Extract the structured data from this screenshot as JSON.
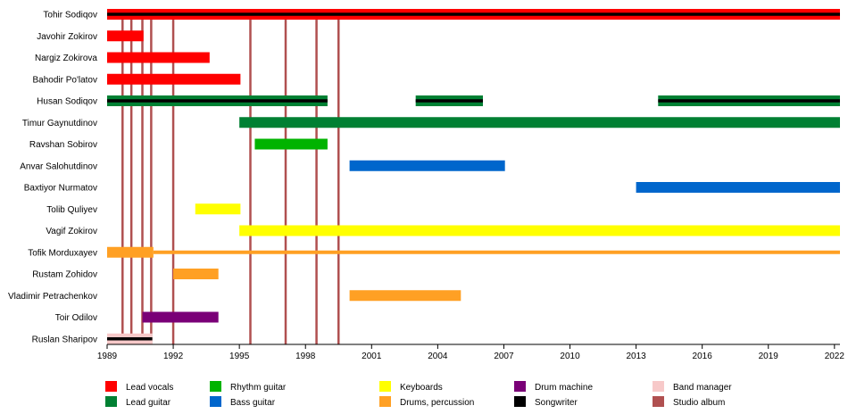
{
  "chart_data": {
    "type": "timeline",
    "title": "",
    "xlim": [
      1989,
      2022.25
    ],
    "ticks": [
      "1989",
      "1992",
      "1995",
      "1998",
      "2001",
      "2004",
      "2007",
      "2010",
      "2013",
      "2016",
      "2019",
      "2022"
    ],
    "tick_values": [
      1989,
      1992,
      1995,
      1998,
      2001,
      2004,
      2007,
      2010,
      2013,
      2016,
      2019,
      2022
    ],
    "roles": {
      "lead_vocals": {
        "label": "Lead vocals",
        "color": "#ff0000"
      },
      "lead_guitar": {
        "label": "Lead guitar",
        "color": "#008033"
      },
      "rhythm_guitar": {
        "label": "Rhythm guitar",
        "color": "#00b300"
      },
      "bass_guitar": {
        "label": "Bass guitar",
        "color": "#0066cc"
      },
      "keyboards": {
        "label": "Keyboards",
        "color": "#ffff00"
      },
      "drums": {
        "label": "Drums, percussion",
        "color": "#ffa024"
      },
      "drum_machine": {
        "label": "Drum machine",
        "color": "#7a0077"
      },
      "songwriter": {
        "label": "Songwriter",
        "color": "#000000"
      },
      "band_manager": {
        "label": "Band manager",
        "color": "#f7c9c9"
      },
      "studio_album": {
        "label": "Studio album",
        "color": "#b05050"
      }
    },
    "legend_order": [
      [
        "lead_vocals",
        "lead_guitar"
      ],
      [
        "rhythm_guitar",
        "bass_guitar"
      ],
      [
        "keyboards",
        "drums"
      ],
      [
        "drum_machine",
        "songwriter"
      ],
      [
        "band_manager",
        "studio_album"
      ]
    ],
    "members": [
      {
        "name": "Tohir Sodiqov",
        "bars": [
          {
            "role": "lead_vocals",
            "start": 1989,
            "end": 2022.25
          },
          {
            "role": "songwriter",
            "start": 1989,
            "end": 2022.25,
            "stripe": true
          }
        ]
      },
      {
        "name": "Javohir Zokirov",
        "bars": [
          {
            "role": "lead_vocals",
            "start": 1989,
            "end": 1990.65
          }
        ]
      },
      {
        "name": "Nargiz Zokirova",
        "bars": [
          {
            "role": "lead_vocals",
            "start": 1989,
            "end": 1993.65
          }
        ]
      },
      {
        "name": "Bahodir Po'latov",
        "bars": [
          {
            "role": "lead_vocals",
            "start": 1989,
            "end": 1995.05
          }
        ]
      },
      {
        "name": "Husan Sodiqov",
        "bars": [
          {
            "role": "lead_guitar",
            "start": 1989,
            "end": 1999.0
          },
          {
            "role": "songwriter",
            "start": 1989,
            "end": 1999.0,
            "stripe": true
          },
          {
            "role": "lead_guitar",
            "start": 2003.0,
            "end": 2006.05
          },
          {
            "role": "songwriter",
            "start": 2003.0,
            "end": 2006.05,
            "stripe": true
          },
          {
            "role": "lead_guitar",
            "start": 2014.0,
            "end": 2022.25
          },
          {
            "role": "songwriter",
            "start": 2014.0,
            "end": 2022.25,
            "stripe": true
          }
        ]
      },
      {
        "name": "Timur Gaynutdinov",
        "bars": [
          {
            "role": "lead_guitar",
            "start": 1995.0,
            "end": 2022.25
          }
        ]
      },
      {
        "name": "Ravshan Sobirov",
        "bars": [
          {
            "role": "rhythm_guitar",
            "start": 1995.7,
            "end": 1999.0
          }
        ]
      },
      {
        "name": "Anvar Salohutdinov",
        "bars": [
          {
            "role": "bass_guitar",
            "start": 2000.0,
            "end": 2007.05
          }
        ]
      },
      {
        "name": "Baxtiyor Nurmatov",
        "bars": [
          {
            "role": "bass_guitar",
            "start": 2013.0,
            "end": 2022.25
          }
        ]
      },
      {
        "name": "Tolib Quliyev",
        "bars": [
          {
            "role": "keyboards",
            "start": 1993.0,
            "end": 1995.05
          }
        ]
      },
      {
        "name": "Vagif Zokirov",
        "bars": [
          {
            "role": "keyboards",
            "start": 1995.0,
            "end": 2022.25
          }
        ]
      },
      {
        "name": "Tofik Morduxayev",
        "bars": [
          {
            "role": "drums",
            "start": 1989,
            "end": 1991.1
          },
          {
            "role": "drums",
            "start": 1991.1,
            "end": 2022.25,
            "thin": true
          }
        ]
      },
      {
        "name": "Rustam Zohidov",
        "bars": [
          {
            "role": "drums",
            "start": 1992.0,
            "end": 1994.05
          }
        ]
      },
      {
        "name": "Vladimir Petrachenkov",
        "bars": [
          {
            "role": "drums",
            "start": 2000.0,
            "end": 2005.05
          }
        ]
      },
      {
        "name": "Toir Odilov",
        "bars": [
          {
            "role": "drum_machine",
            "start": 1990.6,
            "end": 1994.05
          }
        ]
      },
      {
        "name": "Ruslan Sharipov",
        "bars": [
          {
            "role": "band_manager",
            "start": 1989,
            "end": 1991.05
          },
          {
            "role": "songwriter",
            "start": 1989,
            "end": 1991.05,
            "stripe": true
          }
        ]
      }
    ],
    "studio_albums": [
      1989.7,
      1990.1,
      1990.6,
      1991.0,
      1992.0,
      1995.5,
      1997.1,
      1998.5,
      1999.5
    ]
  }
}
